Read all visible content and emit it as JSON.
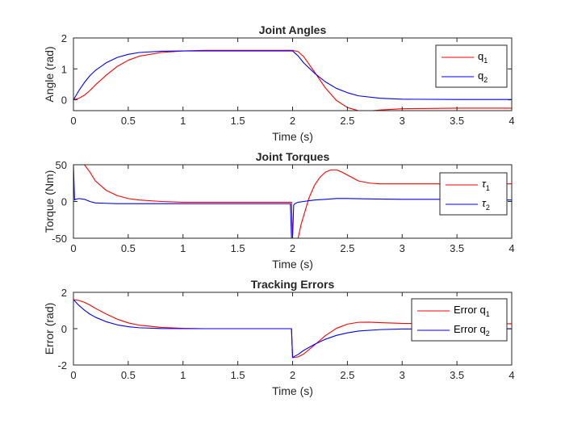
{
  "colors": {
    "q1": "#ff0000",
    "q2": "#0000ff",
    "axis": "#262626",
    "background": "#ffffff"
  },
  "chart_data": [
    {
      "type": "line",
      "title": "Joint Angles",
      "xlabel": "Time (s)",
      "ylabel": "Angle (rad)",
      "xlim": [
        0,
        4
      ],
      "ylim": [
        -0.35,
        2
      ],
      "xticks": [
        "0",
        "0.5",
        "1",
        "1.5",
        "2",
        "2.5",
        "3",
        "3.5",
        "4"
      ],
      "yticks": [
        "0",
        "1",
        "2"
      ],
      "ytick_values": [
        0,
        1,
        2
      ],
      "grid": false,
      "legend": {
        "placement": "top-right",
        "base": [
          "q",
          "q"
        ],
        "sub": [
          "1",
          "2"
        ]
      },
      "series": [
        {
          "name": "q1",
          "x": [
            0,
            0.05,
            0.1,
            0.15,
            0.2,
            0.3,
            0.4,
            0.5,
            0.6,
            0.8,
            1.0,
            1.2,
            1.5,
            1.8,
            2.0,
            2.05,
            2.1,
            2.2,
            2.3,
            2.4,
            2.5,
            2.6,
            2.7,
            2.8,
            3.0,
            3.5,
            4.0
          ],
          "y": [
            0.0,
            0.05,
            0.15,
            0.3,
            0.48,
            0.8,
            1.08,
            1.28,
            1.41,
            1.53,
            1.58,
            1.6,
            1.6,
            1.6,
            1.6,
            1.56,
            1.4,
            0.9,
            0.38,
            -0.02,
            -0.25,
            -0.35,
            -0.36,
            -0.33,
            -0.29,
            -0.27,
            -0.27
          ]
        },
        {
          "name": "q2",
          "x": [
            0,
            0.05,
            0.1,
            0.15,
            0.2,
            0.3,
            0.4,
            0.5,
            0.6,
            0.8,
            1.0,
            1.2,
            1.5,
            1.8,
            2.0,
            2.05,
            2.1,
            2.2,
            2.3,
            2.4,
            2.5,
            2.6,
            2.8,
            3.0,
            3.5,
            4.0
          ],
          "y": [
            0.0,
            0.3,
            0.56,
            0.78,
            0.95,
            1.2,
            1.37,
            1.47,
            1.53,
            1.57,
            1.58,
            1.58,
            1.58,
            1.58,
            1.58,
            1.42,
            1.2,
            0.86,
            0.58,
            0.37,
            0.23,
            0.13,
            0.05,
            0.02,
            0.01,
            0.01
          ]
        }
      ]
    },
    {
      "type": "line",
      "title": "Joint Torques",
      "xlabel": "Time (s)",
      "ylabel": "Torque (Nm)",
      "xlim": [
        0,
        4
      ],
      "ylim": [
        -50,
        50
      ],
      "xticks": [
        "0",
        "0.5",
        "1",
        "1.5",
        "2",
        "2.5",
        "3",
        "3.5",
        "4"
      ],
      "yticks": [
        "-50",
        "0",
        "50"
      ],
      "ytick_values": [
        -50,
        0,
        50
      ],
      "grid": false,
      "legend": {
        "placement": "top-right",
        "base": [
          "τ",
          "τ"
        ],
        "sub": [
          "1",
          "2"
        ]
      },
      "series": [
        {
          "name": "tau1",
          "x": [
            0,
            0.1,
            0.15,
            0.2,
            0.3,
            0.4,
            0.5,
            0.6,
            0.8,
            1.0,
            1.5,
            1.99,
            2.0,
            2.0,
            2.05,
            2.08,
            2.15,
            2.2,
            2.25,
            2.3,
            2.35,
            2.4,
            2.45,
            2.5,
            2.6,
            2.7,
            2.8,
            3.0,
            3.5,
            4.0
          ],
          "y": [
            50,
            50,
            40,
            28,
            15,
            8,
            4,
            2,
            0,
            -1,
            -1,
            -1,
            -50,
            -50,
            -50,
            -30,
            5,
            22,
            33,
            40,
            43,
            43,
            40,
            36,
            28,
            25,
            24,
            24,
            24,
            24
          ]
        },
        {
          "name": "tau2",
          "x": [
            0,
            0.01,
            0.02,
            0.05,
            0.1,
            0.15,
            0.2,
            0.4,
            0.6,
            1.0,
            1.5,
            1.98,
            1.99,
            2.0,
            2.01,
            2.02,
            2.05,
            2.1,
            2.2,
            2.3,
            2.4,
            2.5,
            2.7,
            3.0,
            3.5,
            4.0
          ],
          "y": [
            50,
            2,
            3,
            4,
            3,
            0,
            -2,
            -3,
            -3,
            -3,
            -3,
            -3,
            -50,
            -50,
            -5,
            -3,
            -1,
            0,
            2,
            3,
            4,
            4,
            3.5,
            3,
            3,
            2
          ]
        }
      ]
    },
    {
      "type": "line",
      "title": "Tracking Errors",
      "xlabel": "Time (s)",
      "ylabel": "Error (rad)",
      "xlim": [
        0,
        4
      ],
      "ylim": [
        -2,
        2
      ],
      "xticks": [
        "0",
        "0.5",
        "1",
        "1.5",
        "2",
        "2.5",
        "3",
        "3.5",
        "4"
      ],
      "yticks": [
        "-2",
        "0",
        "2"
      ],
      "ytick_values": [
        -2,
        0,
        2
      ],
      "grid": false,
      "legend": {
        "placement": "top-right",
        "base": [
          "Error q",
          "Error q"
        ],
        "sub": [
          "1",
          "2"
        ]
      },
      "series": [
        {
          "name": "error_q1",
          "x": [
            0,
            0.05,
            0.1,
            0.15,
            0.2,
            0.3,
            0.4,
            0.5,
            0.6,
            0.8,
            1.0,
            1.2,
            1.5,
            1.99,
            2.0,
            2.05,
            2.1,
            2.2,
            2.3,
            2.4,
            2.5,
            2.6,
            2.7,
            2.8,
            3.0,
            3.5,
            4.0
          ],
          "y": [
            1.6,
            1.55,
            1.45,
            1.3,
            1.12,
            0.8,
            0.52,
            0.32,
            0.19,
            0.07,
            0.02,
            0.0,
            0.0,
            0.0,
            -1.6,
            -1.55,
            -1.4,
            -0.9,
            -0.38,
            0.02,
            0.25,
            0.35,
            0.36,
            0.33,
            0.29,
            0.27,
            0.27
          ]
        },
        {
          "name": "error_q2",
          "x": [
            0,
            0.05,
            0.1,
            0.15,
            0.2,
            0.3,
            0.4,
            0.5,
            0.6,
            0.8,
            1.0,
            1.2,
            1.5,
            1.99,
            2.0,
            2.05,
            2.1,
            2.2,
            2.3,
            2.4,
            2.5,
            2.6,
            2.8,
            3.0,
            3.5,
            4.0
          ],
          "y": [
            1.6,
            1.28,
            1.02,
            0.8,
            0.63,
            0.38,
            0.21,
            0.11,
            0.05,
            0.01,
            0.0,
            0.0,
            0.0,
            0.0,
            -1.58,
            -1.42,
            -1.2,
            -0.86,
            -0.58,
            -0.37,
            -0.23,
            -0.13,
            -0.05,
            -0.02,
            -0.01,
            -0.01
          ]
        }
      ]
    }
  ]
}
